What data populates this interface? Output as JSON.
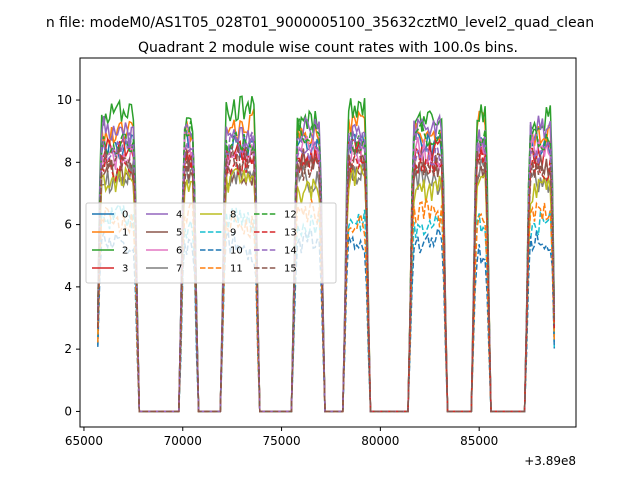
{
  "chart_data": {
    "type": "line",
    "suptitle": "n file: modeM0/AS1T05_028T01_9000005100_35632cztM0_level2_quad_clean",
    "title": "Quadrant 2 module wise count rates with 100.0s bins.",
    "xlabel": "",
    "ylabel": "",
    "x_offset_text": "+3.89e8",
    "xlim": [
      64800,
      89900
    ],
    "ylim": [
      -0.5,
      11.35
    ],
    "xticks": [
      65000,
      70000,
      75000,
      80000,
      85000
    ],
    "xtick_labels": [
      "65000",
      "70000",
      "75000",
      "80000",
      "85000"
    ],
    "yticks": [
      0,
      2,
      4,
      6,
      8,
      10
    ],
    "ytick_labels": [
      "0",
      "2",
      "4",
      "6",
      "8",
      "10"
    ],
    "grid": false,
    "legend_placement": "center-left",
    "legend_columns": 4,
    "orbit_segments": [
      [
        65700,
        67700
      ],
      [
        69900,
        70700
      ],
      [
        72000,
        73800
      ],
      [
        75600,
        77100
      ],
      [
        78200,
        79400
      ],
      [
        81500,
        83300
      ],
      [
        84700,
        85500
      ],
      [
        87400,
        88800
      ]
    ],
    "series": [
      {
        "name": "0",
        "color": "#1f77b4",
        "dash": "solid",
        "level": 8.7
      },
      {
        "name": "1",
        "color": "#ff7f0e",
        "dash": "solid",
        "level": 9.1
      },
      {
        "name": "2",
        "color": "#2ca02c",
        "dash": "solid",
        "level": 9.5
      },
      {
        "name": "3",
        "color": "#d62728",
        "dash": "solid",
        "level": 8.2
      },
      {
        "name": "4",
        "color": "#9467bd",
        "dash": "solid",
        "level": 8.9
      },
      {
        "name": "5",
        "color": "#8c564b",
        "dash": "solid",
        "level": 7.8
      },
      {
        "name": "6",
        "color": "#e377c2",
        "dash": "solid",
        "level": 8.4
      },
      {
        "name": "7",
        "color": "#7f7f7f",
        "dash": "solid",
        "level": 7.6
      },
      {
        "name": "8",
        "color": "#bcbd22",
        "dash": "solid",
        "level": 7.3
      },
      {
        "name": "9",
        "color": "#17becf",
        "dash": "dashed",
        "level": 6.0
      },
      {
        "name": "10",
        "color": "#1f77b4",
        "dash": "dashed",
        "level": 5.3
      },
      {
        "name": "11",
        "color": "#ff7f0e",
        "dash": "dashed",
        "level": 6.2
      },
      {
        "name": "12",
        "color": "#2ca02c",
        "dash": "dashed",
        "level": 8.8
      },
      {
        "name": "13",
        "color": "#d62728",
        "dash": "dashed",
        "level": 8.0
      },
      {
        "name": "14",
        "color": "#9467bd",
        "dash": "dashed",
        "level": 8.5
      },
      {
        "name": "15",
        "color": "#8c564b",
        "dash": "dashed",
        "level": 7.9
      }
    ]
  }
}
